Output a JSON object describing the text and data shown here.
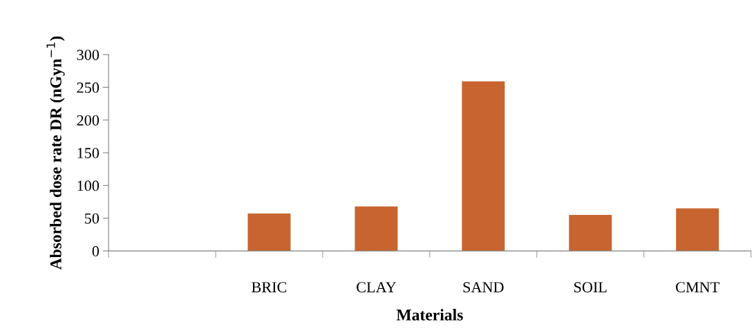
{
  "chart_data": {
    "type": "bar",
    "xlabel": "Materials",
    "ylabel": "Absorbed dose rate DR (nGyn$^{−1}$)",
    "categories": [
      null,
      "BRIC",
      "CLAY",
      "SAND",
      "SOIL",
      "CMNT"
    ],
    "values": [
      null,
      57,
      68,
      259,
      55,
      65
    ],
    "color": "#c8642f",
    "ylim": [
      0,
      300
    ],
    "yticks": [
      0,
      50,
      100,
      150,
      200,
      250,
      300
    ],
    "grid": false,
    "legend": false
  }
}
